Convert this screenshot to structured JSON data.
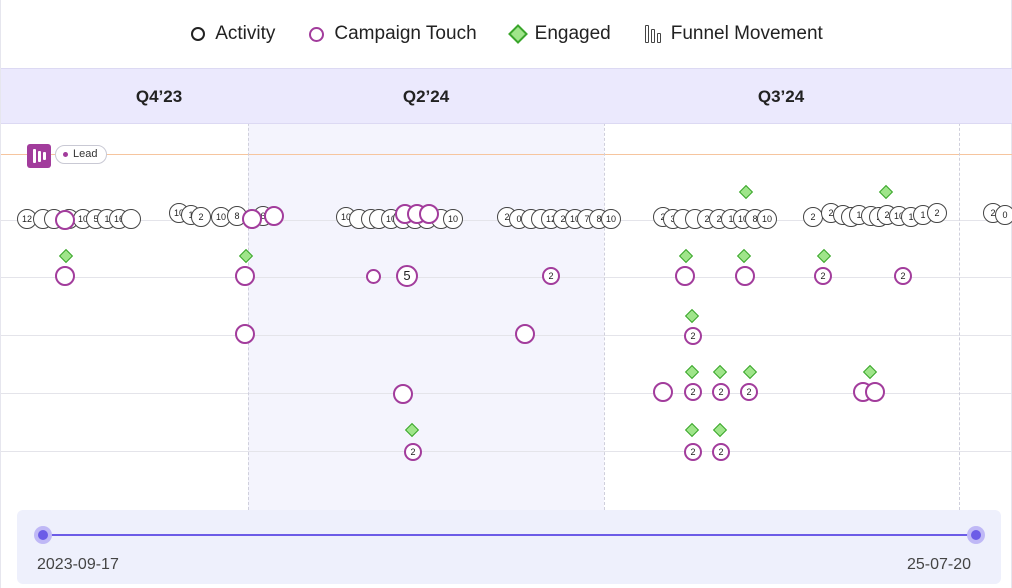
{
  "legend": {
    "activity": "Activity",
    "campaign_touch": "Campaign Touch",
    "engaged": "Engaged",
    "funnel_movement": "Funnel Movement"
  },
  "quarters": [
    "Q4’23",
    "Q2’24",
    "Q3’24"
  ],
  "lead_label": "Lead",
  "activity_markers": [
    {
      "label": "12"
    },
    {
      "label": ""
    },
    {
      "label": ""
    },
    {
      "label": "2"
    },
    {
      "label": "10"
    },
    {
      "label": "5"
    },
    {
      "label": "1"
    },
    {
      "label": "16"
    },
    {
      "label": "10"
    },
    {
      "label": "1"
    },
    {
      "label": "2"
    },
    {
      "label": "10"
    },
    {
      "label": "8"
    },
    {
      "label": "6"
    },
    {
      "label": "10"
    },
    {
      "label": ""
    },
    {
      "label": ""
    },
    {
      "label": ""
    },
    {
      "label": "10"
    },
    {
      "label": ""
    },
    {
      "label": ""
    },
    {
      "label": ""
    },
    {
      "label": ""
    },
    {
      "label": "10"
    },
    {
      "label": "2"
    },
    {
      "label": "0"
    },
    {
      "label": ""
    },
    {
      "label": ""
    },
    {
      "label": "12"
    },
    {
      "label": "2"
    },
    {
      "label": "10"
    },
    {
      "label": "7"
    },
    {
      "label": "8"
    },
    {
      "label": "10"
    },
    {
      "label": "2"
    },
    {
      "label": "3"
    },
    {
      "label": ""
    },
    {
      "label": ""
    },
    {
      "label": "2"
    },
    {
      "label": "2"
    },
    {
      "label": "1"
    },
    {
      "label": "10"
    },
    {
      "label": "8"
    },
    {
      "label": "10"
    },
    {
      "label": "2"
    },
    {
      "label": "2"
    },
    {
      "label": ""
    },
    {
      "label": "1"
    },
    {
      "label": "2"
    },
    {
      "label": "2"
    },
    {
      "label": "10"
    },
    {
      "label": "1"
    },
    {
      "label": "1"
    },
    {
      "label": "2"
    },
    {
      "label": "2"
    },
    {
      "label": "0"
    }
  ],
  "campaign_markers": [
    {
      "label": ""
    },
    {
      "label": ""
    },
    {
      "label": ""
    },
    {
      "label": ""
    },
    {
      "label": ""
    },
    {
      "label": ""
    },
    {
      "label": ""
    },
    {
      "label": ""
    },
    {
      "label": ""
    },
    {
      "label": ""
    },
    {
      "label": "5"
    },
    {
      "label": "2"
    },
    {
      "label": ""
    },
    {
      "label": "2"
    },
    {
      "label": "2"
    },
    {
      "label": ""
    },
    {
      "label": ""
    },
    {
      "label": "2"
    },
    {
      "label": ""
    },
    {
      "label": "2"
    },
    {
      "label": "2"
    },
    {
      "label": "2"
    },
    {
      "label": ""
    },
    {
      "label": ""
    },
    {
      "label": ""
    },
    {
      "label": "2"
    },
    {
      "label": "2"
    },
    {
      "label": "2"
    },
    {
      "label": "2"
    }
  ],
  "range": {
    "start": "2023-09-17",
    "end": "25-07-20"
  },
  "colors": {
    "campaign": "#a23c9c",
    "engaged_fill": "#9fe58a",
    "engaged_border": "#3aa52c",
    "quarter_band": "#ebe9fd",
    "lead_line": "#f6c59e",
    "scrubber_accent": "#6c5ce7"
  }
}
